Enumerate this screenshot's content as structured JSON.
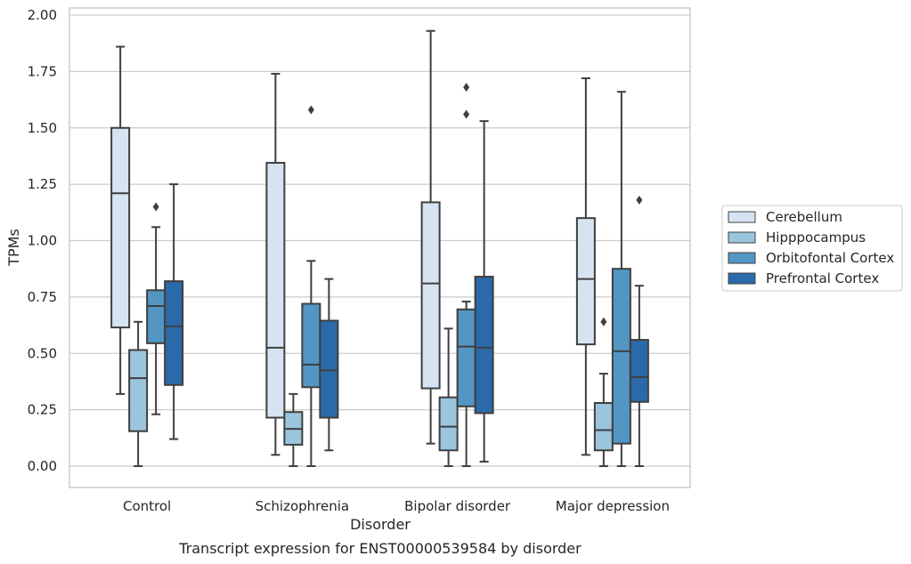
{
  "chart_data": {
    "type": "box",
    "title": "",
    "caption": "Transcript expression for ENST00000539584 by disorder",
    "xlabel": "Disorder",
    "ylabel": "TPMs",
    "ylim": [
      -0.1,
      2.02
    ],
    "yticks": [
      "0.00",
      "0.25",
      "0.50",
      "0.75",
      "1.00",
      "1.25",
      "1.50",
      "1.75",
      "2.00"
    ],
    "grid": "horizontal",
    "legend_position": "right",
    "categories": [
      "Control",
      "Schizophrenia",
      "Bipolar disorder",
      "Major depression"
    ],
    "series": [
      {
        "name": "Cerebellum",
        "color": "#d6e4f2",
        "boxes": [
          {
            "whislo": 0.32,
            "q1": 0.615,
            "med": 1.21,
            "q3": 1.5,
            "whishi": 1.86,
            "fliers": []
          },
          {
            "whislo": 0.05,
            "q1": 0.215,
            "med": 0.525,
            "q3": 1.345,
            "whishi": 1.74,
            "fliers": []
          },
          {
            "whislo": 0.1,
            "q1": 0.345,
            "med": 0.81,
            "q3": 1.17,
            "whishi": 1.93,
            "fliers": []
          },
          {
            "whislo": 0.05,
            "q1": 0.54,
            "med": 0.83,
            "q3": 1.1,
            "whishi": 1.72,
            "fliers": []
          }
        ]
      },
      {
        "name": "Hipppocampus",
        "color": "#9ac5dd",
        "boxes": [
          {
            "whislo": 0.0,
            "q1": 0.155,
            "med": 0.39,
            "q3": 0.515,
            "whishi": 0.64,
            "fliers": []
          },
          {
            "whislo": 0.0,
            "q1": 0.095,
            "med": 0.165,
            "q3": 0.24,
            "whishi": 0.32,
            "fliers": []
          },
          {
            "whislo": 0.0,
            "q1": 0.07,
            "med": 0.175,
            "q3": 0.305,
            "whishi": 0.61,
            "fliers": []
          },
          {
            "whislo": 0.0,
            "q1": 0.07,
            "med": 0.16,
            "q3": 0.28,
            "whishi": 0.41,
            "fliers": [
              0.64
            ]
          }
        ]
      },
      {
        "name": "Orbitofontal Cortex",
        "color": "#5396c4",
        "boxes": [
          {
            "whislo": 0.23,
            "q1": 0.545,
            "med": 0.71,
            "q3": 0.78,
            "whishi": 1.06,
            "fliers": [
              1.15
            ]
          },
          {
            "whislo": 0.0,
            "q1": 0.35,
            "med": 0.45,
            "q3": 0.72,
            "whishi": 0.91,
            "fliers": [
              1.58
            ]
          },
          {
            "whislo": 0.0,
            "q1": 0.265,
            "med": 0.53,
            "q3": 0.695,
            "whishi": 0.73,
            "fliers": [
              1.56,
              1.68
            ]
          },
          {
            "whislo": 0.0,
            "q1": 0.1,
            "med": 0.51,
            "q3": 0.875,
            "whishi": 1.66,
            "fliers": []
          }
        ]
      },
      {
        "name": "Prefrontal Cortex",
        "color": "#2b6aa9",
        "boxes": [
          {
            "whislo": 0.12,
            "q1": 0.36,
            "med": 0.62,
            "q3": 0.82,
            "whishi": 1.25,
            "fliers": []
          },
          {
            "whislo": 0.07,
            "q1": 0.215,
            "med": 0.425,
            "q3": 0.645,
            "whishi": 0.83,
            "fliers": []
          },
          {
            "whislo": 0.02,
            "q1": 0.235,
            "med": 0.525,
            "q3": 0.84,
            "whishi": 1.53,
            "fliers": []
          },
          {
            "whislo": 0.0,
            "q1": 0.285,
            "med": 0.395,
            "q3": 0.56,
            "whishi": 0.8,
            "fliers": [
              1.18
            ]
          }
        ]
      }
    ]
  }
}
